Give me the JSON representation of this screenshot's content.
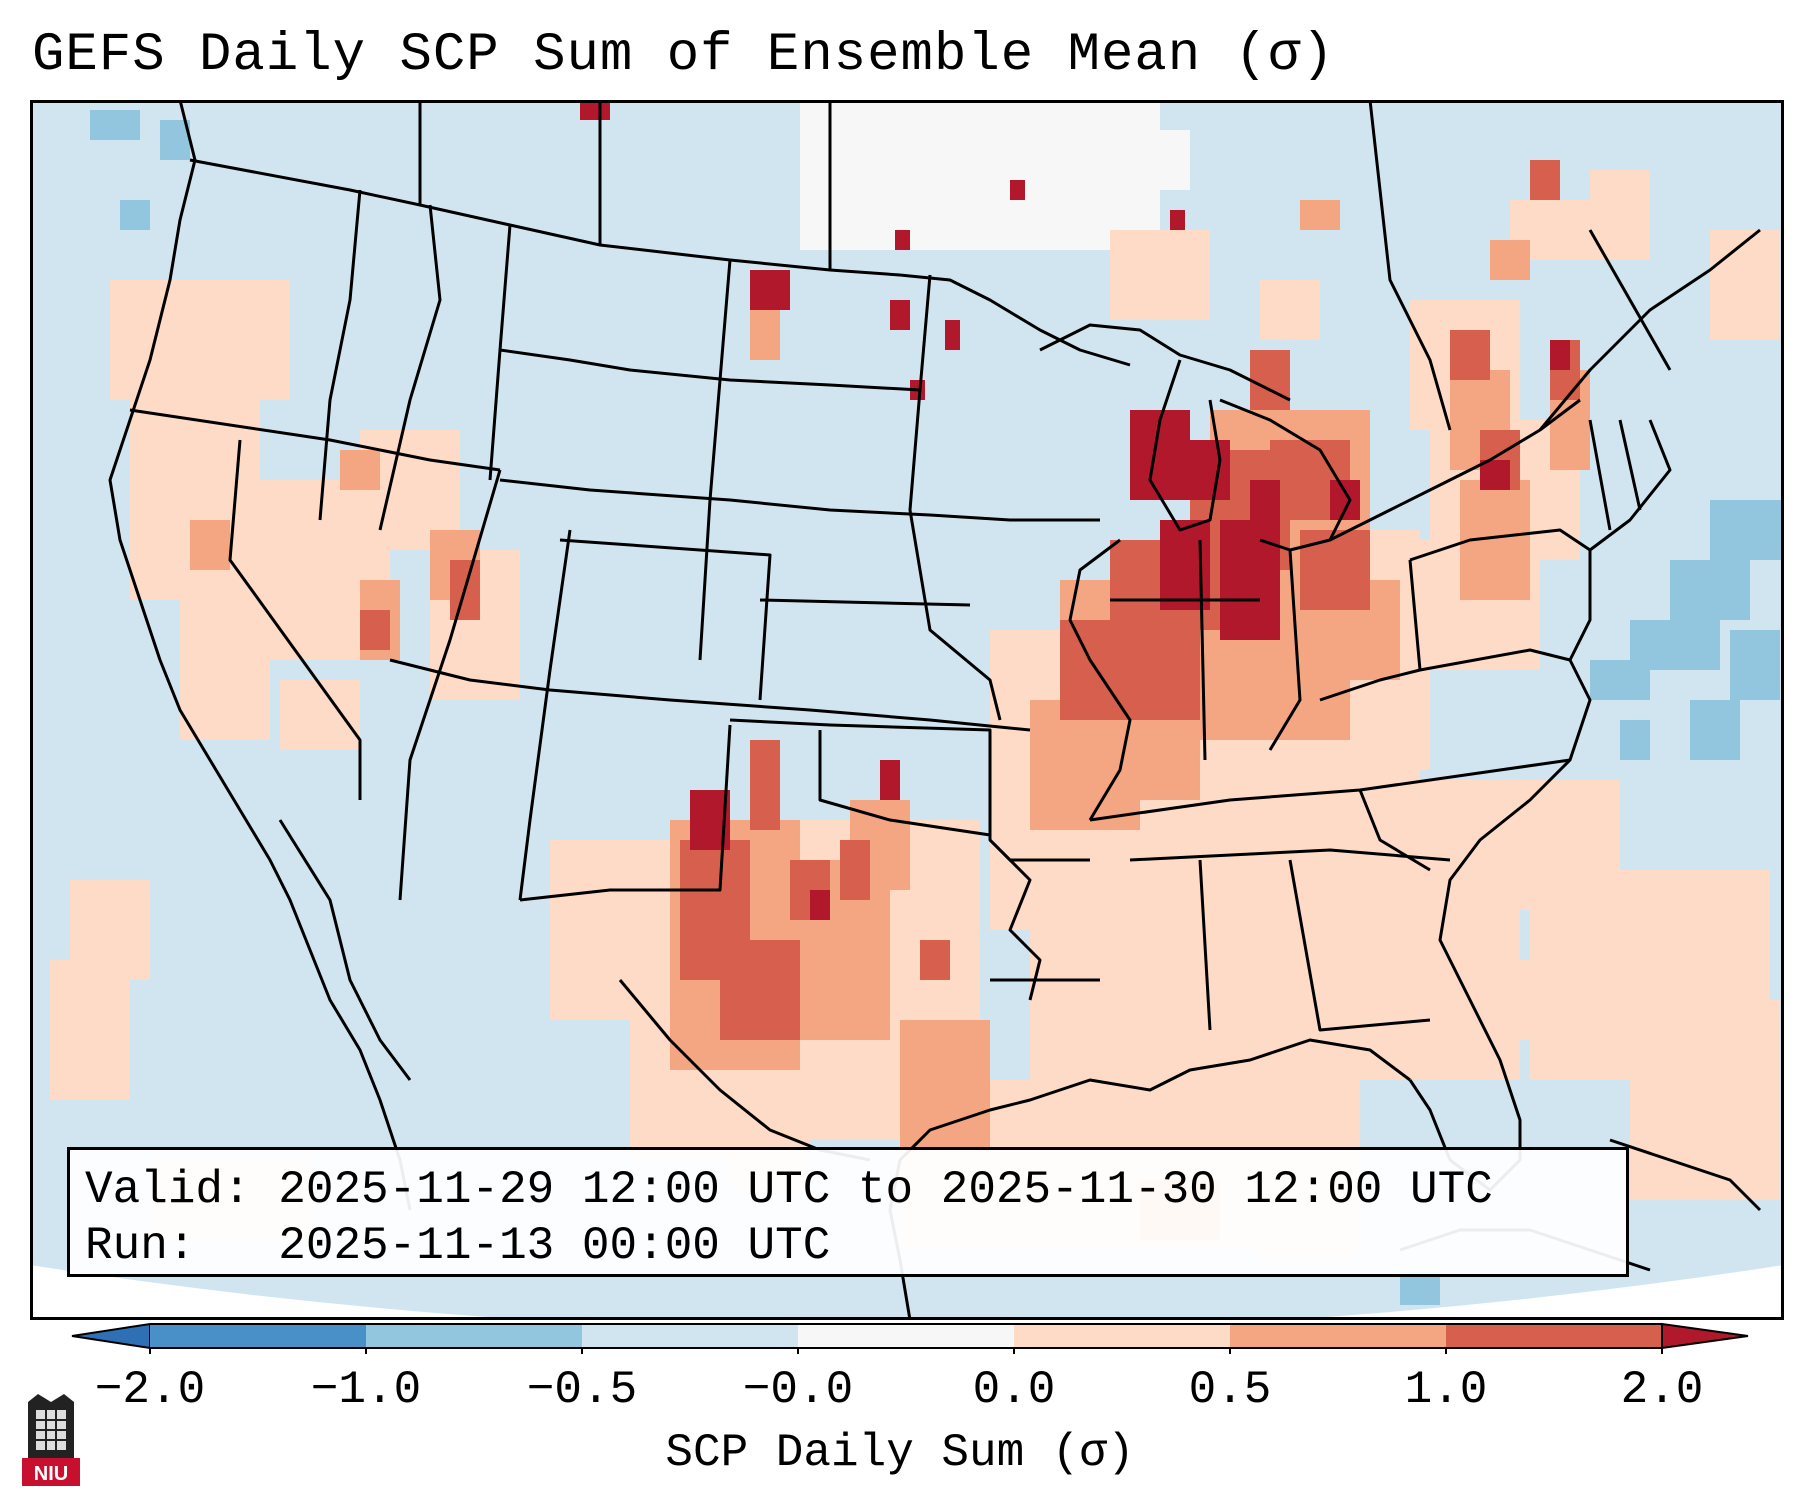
{
  "title": "GEFS Daily SCP Sum of Ensemble Mean (σ)",
  "info": {
    "valid_line": "Valid: 2025-11-29 12:00 UTC to 2025-11-30 12:00 UTC",
    "run_line": "Run:   2025-11-13 00:00 UTC"
  },
  "colorbar": {
    "label": "SCP Daily Sum (σ)",
    "ticks": [
      "−2.0",
      "−1.0",
      "−0.5",
      "−0.0",
      "0.0",
      "0.5",
      "1.0",
      "2.0"
    ],
    "bins": [
      {
        "range": "< -2.0",
        "color": "#2f6fb3"
      },
      {
        "range": "-2.0 to -1.0",
        "color": "#4a90c8"
      },
      {
        "range": "-1.0 to -0.5",
        "color": "#92c5de"
      },
      {
        "range": "-0.5 to -0.0",
        "color": "#d1e5f0"
      },
      {
        "range": "-0.0 to 0.0",
        "color": "#f7f7f7"
      },
      {
        "range": "0.0 to 0.5",
        "color": "#fddbc7"
      },
      {
        "range": "0.5 to 1.0",
        "color": "#f4a582"
      },
      {
        "range": "1.0 to 2.0",
        "color": "#d6604d"
      },
      {
        "range": "> 2.0",
        "color": "#b2182b"
      }
    ]
  },
  "logo": {
    "text": "NIU",
    "color": "#c8102e"
  }
}
